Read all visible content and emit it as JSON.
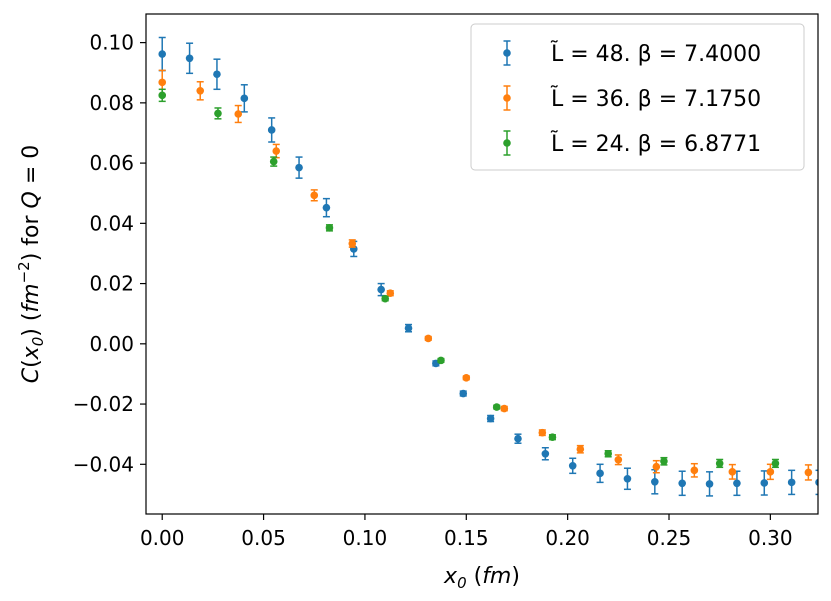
{
  "chart_data": {
    "type": "scatter",
    "title": "",
    "xlabel": "x₀ (fm)",
    "ylabel": "C(x₀) (fm⁻²) for Q = 0",
    "xlim": [
      -0.008,
      0.3235
    ],
    "ylim": [
      -0.0565,
      0.1095
    ],
    "xticks": [
      0.0,
      0.05,
      0.1,
      0.15,
      0.2,
      0.25,
      0.3
    ],
    "xtick_labels": [
      "0.00",
      "0.05",
      "0.10",
      "0.15",
      "0.20",
      "0.25",
      "0.30"
    ],
    "yticks": [
      -0.04,
      -0.02,
      0.0,
      0.02,
      0.04,
      0.06,
      0.08,
      0.1
    ],
    "ytick_labels": [
      "−0.04",
      "−0.02",
      "0.00",
      "0.02",
      "0.04",
      "0.06",
      "0.08",
      "0.10"
    ],
    "legend_position": "top-right",
    "series": [
      {
        "name": "L̃ = 48. β = 7.4000",
        "color": "#1f77b4",
        "x": [
          0.0,
          0.0135,
          0.027,
          0.0405,
          0.054,
          0.0675,
          0.081,
          0.0945,
          0.108,
          0.1215,
          0.135,
          0.1485,
          0.162,
          0.1755,
          0.189,
          0.2025,
          0.216,
          0.2295,
          0.243,
          0.2565,
          0.27,
          0.2835,
          0.297,
          0.3105,
          0.324
        ],
        "y": [
          0.0962,
          0.0948,
          0.0895,
          0.0815,
          0.071,
          0.0585,
          0.0452,
          0.0315,
          0.018,
          0.0052,
          -0.0065,
          -0.0165,
          -0.0248,
          -0.0315,
          -0.0365,
          -0.0405,
          -0.043,
          -0.0448,
          -0.0458,
          -0.0463,
          -0.0465,
          -0.0463,
          -0.0462,
          -0.046,
          -0.046
        ],
        "yerr": [
          0.0055,
          0.005,
          0.005,
          0.0045,
          0.004,
          0.0035,
          0.003,
          0.0025,
          0.002,
          0.0012,
          0.0008,
          0.0008,
          0.001,
          0.0015,
          0.002,
          0.0025,
          0.003,
          0.0035,
          0.004,
          0.004,
          0.004,
          0.004,
          0.004,
          0.004,
          0.004
        ]
      },
      {
        "name": "L̃ = 36. β = 7.1750",
        "color": "#ff7f0e",
        "x": [
          0.0,
          0.01875,
          0.0375,
          0.05625,
          0.075,
          0.09375,
          0.1125,
          0.13125,
          0.15,
          0.16875,
          0.1875,
          0.20625,
          0.225,
          0.24375,
          0.2625,
          0.28125,
          0.3,
          0.31875
        ],
        "y": [
          0.0868,
          0.084,
          0.0763,
          0.064,
          0.0493,
          0.0333,
          0.0168,
          0.0018,
          -0.0113,
          -0.0215,
          -0.0295,
          -0.035,
          -0.0385,
          -0.0408,
          -0.042,
          -0.0425,
          -0.0425,
          -0.0427
        ],
        "yerr": [
          0.004,
          0.003,
          0.0028,
          0.0022,
          0.0018,
          0.0012,
          0.0008,
          0.0006,
          0.0006,
          0.0007,
          0.0009,
          0.0012,
          0.0016,
          0.002,
          0.0022,
          0.0024,
          0.0025,
          0.0025
        ]
      },
      {
        "name": "L̃ = 24. β = 6.8771",
        "color": "#2ca02c",
        "x": [
          0.0,
          0.0275,
          0.055,
          0.0825,
          0.11,
          0.1375,
          0.165,
          0.1925,
          0.22,
          0.2475,
          0.275,
          0.3025
        ],
        "y": [
          0.0825,
          0.0765,
          0.0605,
          0.0385,
          0.015,
          -0.0055,
          -0.021,
          -0.031,
          -0.0365,
          -0.039,
          -0.0397,
          -0.0397
        ],
        "yerr": [
          0.002,
          0.0018,
          0.0015,
          0.001,
          0.0007,
          0.0006,
          0.0006,
          0.0008,
          0.001,
          0.0012,
          0.0013,
          0.0013
        ]
      }
    ]
  }
}
